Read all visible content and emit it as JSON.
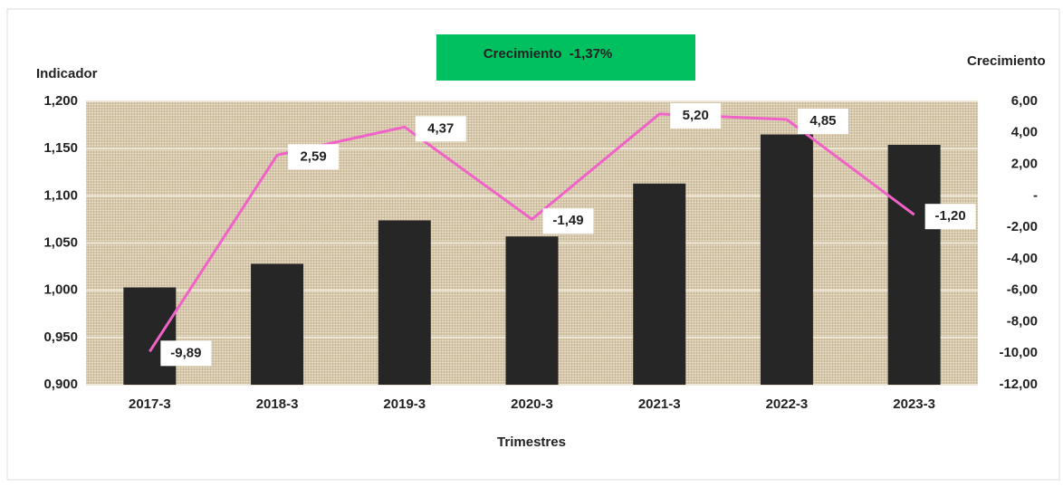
{
  "chart_data": {
    "type": "bar",
    "annotation": "Crecimiento  -1,37%",
    "ylabel": "Indicador",
    "y2label": "Crecimiento",
    "xlabel": "Trimestres",
    "categories": [
      "2017-3",
      "2018-3",
      "2019-3",
      "2020-3",
      "2021-3",
      "2022-3",
      "2023-3"
    ],
    "series": [
      {
        "type": "bar",
        "color": "#262626",
        "values": [
          1.003,
          1.028,
          1.074,
          1.057,
          1.113,
          1.165,
          1.154
        ]
      },
      {
        "type": "line",
        "axis": "y2",
        "color": "#f062c8",
        "values": [
          -9.89,
          2.59,
          4.37,
          -1.49,
          5.2,
          4.85,
          -1.2
        ],
        "value_labels": [
          "-9,89",
          "2,59",
          "4,37",
          "-1,49",
          "5,20",
          "4,85",
          "-1,20"
        ]
      }
    ],
    "ylim": [
      0.9,
      1.2
    ],
    "yticks": [
      {
        "value": 0.9,
        "label": "0,900"
      },
      {
        "value": 0.95,
        "label": "0,950"
      },
      {
        "value": 1.0,
        "label": "1,000"
      },
      {
        "value": 1.05,
        "label": "1,050"
      },
      {
        "value": 1.1,
        "label": "1,100"
      },
      {
        "value": 1.15,
        "label": "1,150"
      },
      {
        "value": 1.2,
        "label": "1,200"
      }
    ],
    "y2lim": [
      -12,
      6
    ],
    "y2ticks": [
      {
        "value": -12,
        "label": "-12,00"
      },
      {
        "value": -10,
        "label": "-10,00"
      },
      {
        "value": -8,
        "label": "-8,00"
      },
      {
        "value": -6,
        "label": "-6,00"
      },
      {
        "value": -4,
        "label": "-4,00"
      },
      {
        "value": -2,
        "label": "-2,00"
      },
      {
        "value": 0,
        "label": "-"
      },
      {
        "value": 2,
        "label": "2,00"
      },
      {
        "value": 4,
        "label": "4,00"
      },
      {
        "value": 6,
        "label": "6,00"
      }
    ],
    "grid": true
  }
}
